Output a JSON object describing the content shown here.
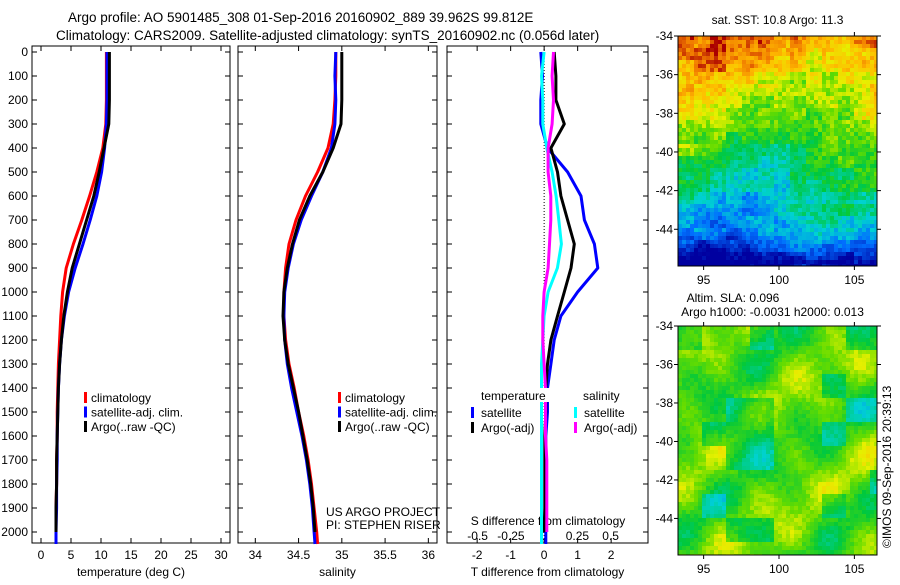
{
  "titles": {
    "line1": "Argo profile: AO 5901485_308 01-Sep-2016 20160902_889 39.962S 99.812E",
    "line2": "Climatology: CARS2009. Satellite-adjusted climatology: synTS_20160902.nc (0.056d later)"
  },
  "copyright": "©IMOS 09-Sep-2016 20:39:13",
  "project": {
    "line1": "US ARGO PROJECT",
    "line2": "PI: STEPHEN RISER"
  },
  "chart_data": {
    "depth_axis": {
      "ylim": [
        0,
        2050
      ],
      "ticks": [
        0,
        100,
        200,
        300,
        400,
        500,
        600,
        700,
        800,
        900,
        1000,
        1100,
        1200,
        1300,
        1400,
        1500,
        1600,
        1700,
        1800,
        1900,
        2000
      ]
    },
    "depths": [
      0,
      100,
      200,
      300,
      400,
      500,
      600,
      700,
      800,
      900,
      1000,
      1100,
      1200,
      1300,
      1400,
      1500,
      1600,
      1700,
      1800,
      1900,
      2000,
      2050
    ],
    "panels": [
      {
        "type": "line",
        "id": "temperature",
        "xlabel": "temperature (deg C)",
        "xlim": [
          -1.5,
          31.5
        ],
        "xticks": [
          0,
          5,
          10,
          15,
          20,
          25,
          30
        ],
        "legend": [
          "climatology",
          "satellite-adj. clim.",
          "Argo(..raw -QC)"
        ],
        "series": [
          {
            "name": "climatology",
            "color": "#ff0000",
            "values": [
              10.9,
              10.9,
              10.9,
              10.8,
              10.3,
              9.3,
              8.1,
              6.8,
              5.4,
              4.2,
              3.6,
              3.3,
              3.1,
              2.9,
              2.8,
              2.7,
              2.7,
              2.6,
              2.6,
              2.5,
              2.5,
              2.5
            ]
          },
          {
            "name": "satellite-adj. clim.",
            "color": "#0000ff",
            "values": [
              11.0,
              11.0,
              11.0,
              10.9,
              10.6,
              10.1,
              9.3,
              8.2,
              7.0,
              5.7,
              4.6,
              3.9,
              3.4,
              3.1,
              2.9,
              2.8,
              2.7,
              2.7,
              2.6,
              2.6,
              2.5,
              2.5
            ]
          },
          {
            "name": "Argo(..raw -QC)",
            "color": "#000000",
            "values": [
              11.4,
              11.4,
              11.4,
              11.3,
              10.5,
              9.7,
              8.8,
              7.6,
              6.4,
              5.2,
              4.4,
              3.8,
              3.4,
              3.1,
              2.9,
              2.8,
              2.7,
              2.6,
              2.6,
              2.5,
              2.5,
              null
            ]
          }
        ]
      },
      {
        "type": "line",
        "id": "salinity",
        "xlabel": "salinity",
        "xlim": [
          33.8,
          36.1
        ],
        "xticks": [
          34,
          34.5,
          35,
          35.5,
          36
        ],
        "legend": [
          "climatology",
          "satellite-adj. clim.",
          "Argo(..raw -QC)"
        ],
        "series": [
          {
            "name": "climatology",
            "color": "#ff0000",
            "values": [
              34.93,
              34.93,
              34.92,
              34.9,
              34.84,
              34.72,
              34.58,
              34.47,
              34.39,
              34.35,
              34.33,
              34.33,
              34.35,
              34.39,
              34.45,
              34.5,
              34.56,
              34.61,
              34.65,
              34.68,
              34.71,
              34.72
            ]
          },
          {
            "name": "satellite-adj. clim.",
            "color": "#0000ff",
            "values": [
              34.93,
              34.92,
              34.93,
              34.92,
              34.88,
              34.78,
              34.65,
              34.53,
              34.44,
              34.38,
              34.34,
              34.33,
              34.34,
              34.37,
              34.42,
              34.48,
              34.54,
              34.59,
              34.63,
              34.66,
              34.68,
              34.69
            ]
          },
          {
            "name": "Argo(..raw -QC)",
            "color": "#000000",
            "values": [
              35.0,
              35.0,
              35.0,
              34.99,
              34.9,
              34.78,
              34.63,
              34.51,
              34.43,
              34.37,
              34.33,
              34.32,
              34.34,
              34.38,
              34.44,
              34.5,
              34.55,
              34.6,
              34.64,
              34.67,
              34.69,
              null
            ]
          }
        ]
      },
      {
        "type": "line",
        "id": "difference",
        "xlabel": "T difference from climatology",
        "xlim": [
          -2.9,
          3.1
        ],
        "xticks": [
          -2,
          -1,
          0,
          1,
          2
        ],
        "x2label": "S difference from climatology",
        "x2ticks": [
          -0.5,
          -0.25,
          0,
          0.25,
          0.5
        ],
        "x2tick_labels": [
          "-0.5",
          "-0.25",
          "0",
          "0.25",
          "0.5"
        ],
        "legend_headers": {
          "temperature": "temperature",
          "salinity": "salinity"
        },
        "legend": [
          "satellite",
          "Argo(-adj)",
          "satellite",
          "Argo(-adj)"
        ],
        "series": [
          {
            "name": "temperature satellite",
            "axis": "T",
            "color": "#0000ff",
            "values": [
              -0.1,
              -0.05,
              -0.1,
              -0.1,
              0.1,
              0.7,
              1.1,
              1.2,
              1.5,
              1.6,
              1.0,
              0.5,
              0.3,
              0.2,
              0.1,
              0.1,
              0.05,
              0.05,
              0.05,
              0.05,
              0.05,
              0.05
            ]
          },
          {
            "name": "temperature Argo(-adj)",
            "axis": "T",
            "color": "#000000",
            "values": [
              0.3,
              0.35,
              0.35,
              0.6,
              0.2,
              0.4,
              0.5,
              0.7,
              0.9,
              0.8,
              0.6,
              0.4,
              0.2,
              0.1,
              0.05,
              0.05,
              0.02,
              0.02,
              0.02,
              0.02,
              0.0,
              null
            ]
          },
          {
            "name": "salinity satellite",
            "axis": "S",
            "color": "#00ffff",
            "values": [
              0.0,
              -0.02,
              -0.01,
              -0.01,
              0.02,
              0.06,
              0.09,
              0.11,
              0.13,
              0.1,
              0.03,
              0.0,
              -0.01,
              -0.02,
              -0.02,
              -0.02,
              -0.02,
              -0.02,
              -0.02,
              -0.02,
              -0.02,
              -0.02
            ]
          },
          {
            "name": "salinity Argo(-adj)",
            "axis": "S",
            "color": "#ff00ff",
            "values": [
              0.07,
              0.06,
              0.07,
              0.06,
              0.03,
              0.03,
              0.05,
              0.05,
              0.04,
              0.03,
              0.0,
              -0.01,
              -0.01,
              0.0,
              0.01,
              0.01,
              0.01,
              0.02,
              0.02,
              0.02,
              0.02,
              null
            ]
          }
        ]
      }
    ],
    "maps": [
      {
        "id": "sst",
        "type": "heatmap",
        "title": "sat. SST: 10.8 Argo: 11.3",
        "xlim": [
          93.3,
          106.5
        ],
        "ylim": [
          -45.9,
          -34
        ],
        "xticks": [
          95,
          100,
          105
        ],
        "yticks": [
          -34,
          -36,
          -38,
          -40,
          -42,
          -44
        ]
      },
      {
        "id": "sla",
        "type": "heatmap",
        "title_line1": "Altim. SLA: 0.096",
        "title_line2": "Argo h1000: -0.0031 h2000: 0.013",
        "xlim": [
          93.3,
          106.5
        ],
        "ylim": [
          -45.9,
          -34
        ],
        "xticks": [
          95,
          100,
          105
        ],
        "yticks": [
          -34,
          -36,
          -38,
          -40,
          -42,
          -44
        ]
      }
    ]
  }
}
